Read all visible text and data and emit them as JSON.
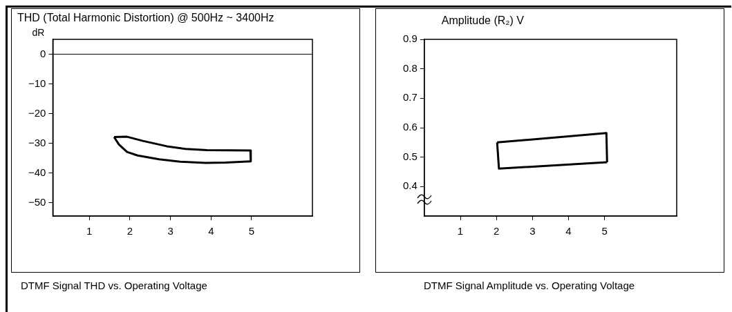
{
  "chart_data": [
    {
      "type": "line",
      "title": "THD (Total Harmonic Distortion) @ 500Hz ~ 3400Hz",
      "ylabel": "dR",
      "annotations": [
        "DTMF Signal THD vs. Operating Voltage"
      ],
      "series": [
        {
          "color": "#000000",
          "x": [
            1.61,
            1.93,
            2.32,
            2.91,
            3.37,
            3.9,
            4.97,
            4.98
          ],
          "values": [
            -27.9,
            -27.8,
            -29.2,
            -31.0,
            -31.9,
            -32.3,
            -32.4,
            -36.1
          ]
        },
        {
          "color": "#000000",
          "x": [
            1.61,
            1.73,
            1.93,
            2.19,
            2.72,
            3.24,
            3.87,
            4.36,
            4.98
          ],
          "values": [
            -27.9,
            -30.4,
            -32.9,
            -34.1,
            -35.4,
            -36.2,
            -36.6,
            -36.5,
            -36.1
          ]
        }
      ],
      "xlim": [
        0.1,
        6.5
      ],
      "xticks": [
        1,
        2,
        3,
        4,
        5
      ],
      "ylim": [
        -54.5,
        5
      ],
      "yticks": [
        0,
        -10,
        -20,
        -30,
        -40,
        -50
      ],
      "ref_lines": [
        {
          "axis": "y",
          "value": 0
        }
      ],
      "grid": false,
      "legend": false,
      "marker": "none",
      "line_style": "solid"
    },
    {
      "type": "line",
      "ylabel": "Amplitude (R₂) V",
      "annotations": [
        "DTMF Signal Amplitude vs. Operating Voltage"
      ],
      "series": [
        {
          "color": "#000000",
          "x": [
            2.02,
            5.05,
            5.07
          ],
          "values": [
            0.55,
            0.582,
            0.483
          ]
        },
        {
          "color": "#000000",
          "x": [
            2.02,
            2.07,
            5.07
          ],
          "values": [
            0.55,
            0.461,
            0.483
          ]
        }
      ],
      "xlim": [
        0,
        7
      ],
      "xticks": [
        1,
        2,
        3,
        4,
        5
      ],
      "ylim": [
        0.3,
        0.9
      ],
      "yticks": [
        0.4,
        0.5,
        0.6,
        0.7,
        0.8,
        0.9
      ],
      "grid": false,
      "legend": false,
      "marker": "none",
      "line_style": "solid"
    }
  ]
}
